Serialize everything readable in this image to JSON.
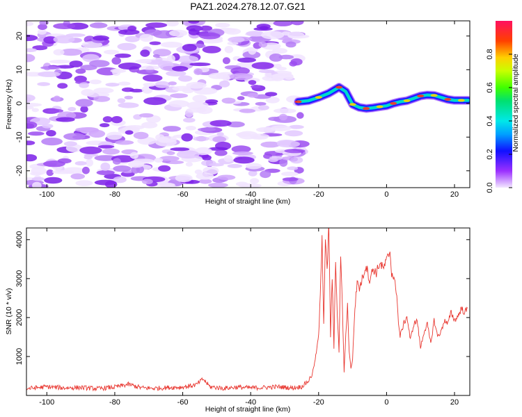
{
  "title": "PAZ1.2024.278.12.07.G21",
  "chart_data": [
    {
      "type": "heatmap",
      "xlabel": "Height of straight line (km)",
      "ylabel": "Frequency (Hz)",
      "xlim": [
        -106,
        24.5
      ],
      "ylim": [
        -25,
        24.5
      ],
      "x_ticks": [
        -100,
        -80,
        -60,
        -40,
        -20,
        0,
        20
      ],
      "y_ticks": [
        -20,
        -10,
        0,
        10,
        20
      ],
      "noise_region_x": [
        -106,
        -25
      ],
      "noise_color": "#7a1fe8",
      "signal_trace": {
        "x": [
          -26,
          -23,
          -20,
          -17,
          -14,
          -12,
          -10,
          -8,
          -6,
          -4,
          -2,
          0,
          2,
          4,
          6,
          8,
          10,
          12,
          14,
          16,
          18,
          20,
          22,
          24
        ],
        "frequency": [
          0.5,
          0.8,
          1.8,
          3.0,
          4.8,
          3.5,
          -0.3,
          -1.2,
          -1.5,
          -1.3,
          -1.0,
          -0.7,
          0.0,
          0.5,
          0.8,
          1.5,
          2.2,
          2.5,
          2.4,
          1.8,
          1.2,
          0.9,
          0.9,
          0.9
        ]
      },
      "colorbar": {
        "label": "Normalized spectral amplitude",
        "range": [
          0,
          1
        ],
        "ticks": [
          "0.0",
          "0.2",
          "0.4",
          "0.6",
          "0.8"
        ]
      },
      "grid": false
    },
    {
      "type": "line",
      "xlabel": "Height of straight line (km)",
      "ylabel": "SNR (10 * v/v)",
      "xlim": [
        -106,
        24.5
      ],
      "ylim": [
        0,
        4300
      ],
      "x_ticks": [
        -100,
        -80,
        -60,
        -40,
        -20,
        0,
        20
      ],
      "y_ticks": [
        1000,
        2000,
        3000,
        4000
      ],
      "line_color": "#e8352e",
      "series": [
        {
          "x": [
            -106,
            -100,
            -95,
            -90,
            -85,
            -80,
            -76,
            -72,
            -68,
            -64,
            -60,
            -56,
            -54,
            -52,
            -48,
            -44,
            -40,
            -36,
            -32,
            -28,
            -25,
            -23,
            -22,
            -21,
            -20,
            -19.5,
            -19,
            -18.5,
            -18,
            -17.5,
            -17,
            -16.5,
            -16,
            -15.5,
            -15,
            -14.5,
            -14,
            -13.5,
            -13,
            -12.5,
            -12,
            -11.5,
            -11,
            -10.5,
            -10,
            -9.5,
            -9,
            -8.5,
            -8,
            -7,
            -6,
            -5,
            -4,
            -3,
            -2,
            -1,
            0,
            1,
            1.5,
            2,
            2.5,
            3,
            3.5,
            4,
            5,
            6,
            7,
            8,
            9,
            10,
            11,
            12,
            13,
            14,
            15,
            16,
            17,
            18,
            19,
            20,
            21,
            22,
            23,
            24
          ],
          "values": [
            150,
            200,
            170,
            180,
            150,
            190,
            260,
            170,
            160,
            180,
            190,
            250,
            400,
            200,
            160,
            190,
            170,
            180,
            200,
            170,
            200,
            350,
            500,
            900,
            1500,
            2500,
            4100,
            1800,
            4000,
            3100,
            4300,
            1500,
            3000,
            1200,
            3500,
            2000,
            1100,
            3600,
            2200,
            600,
            1500,
            2300,
            1100,
            700,
            900,
            1900,
            2600,
            2900,
            2700,
            3000,
            3300,
            2900,
            3200,
            3100,
            3350,
            3200,
            3400,
            3650,
            3100,
            3000,
            2800,
            2600,
            1800,
            1500,
            1800,
            2000,
            1400,
            1800,
            1900,
            1200,
            1600,
            1800,
            1300,
            1900,
            1500,
            1600,
            1900,
            1800,
            2100,
            1900,
            2000,
            2200,
            2100,
            2200
          ]
        }
      ],
      "grid": false
    }
  ]
}
